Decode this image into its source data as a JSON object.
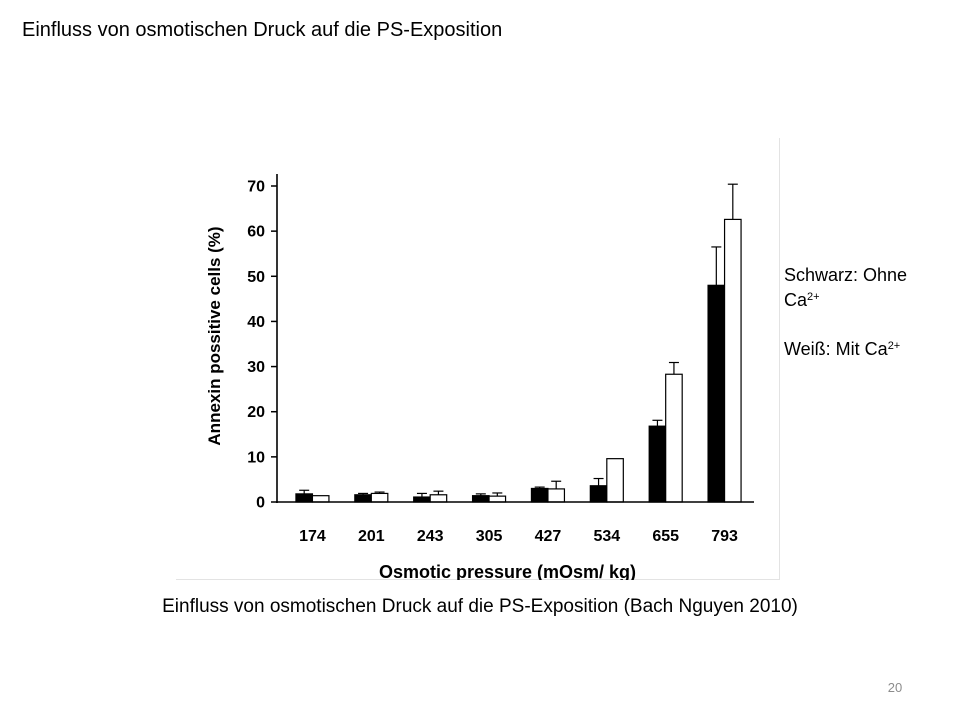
{
  "slide": {
    "title": "Einfluss von osmotischen Druck auf die PS-Exposition",
    "caption": "Einfluss von osmotischen Druck auf die PS-Exposition (Bach Nguyen 2010)",
    "page_number": "20"
  },
  "legend": {
    "black_label": "Schwarz: Ohne",
    "black_label_ca": "Ca",
    "white_label": "Weiß: Mit Ca",
    "charge": "2+"
  },
  "chart_data": {
    "type": "bar",
    "xlabel": "Osmotic pressure (mOsm/ kg)",
    "ylabel": "Annexin possitive cells (%)",
    "ylim": [
      0,
      70
    ],
    "yticks": [
      "0",
      "10",
      "20",
      "30",
      "40",
      "50",
      "60",
      "70"
    ],
    "categories": [
      "174",
      "201",
      "243",
      "305",
      "427",
      "534",
      "655",
      "793"
    ],
    "series": [
      {
        "fill": "#000000",
        "values": [
          1.8,
          1.6,
          1.1,
          1.4,
          3.0,
          3.6,
          16.8,
          48.0
        ],
        "errors": [
          0.8,
          0.3,
          0.8,
          0.4,
          0.3,
          1.6,
          1.3,
          8.5
        ]
      },
      {
        "fill": "#ffffff",
        "values": [
          1.4,
          1.9,
          1.6,
          1.3,
          2.9,
          9.6,
          28.3,
          62.6
        ],
        "errors": [
          0.0,
          0.3,
          0.8,
          0.7,
          1.7,
          0.0,
          2.6,
          7.8
        ]
      }
    ],
    "grid": false,
    "legend_position": "right of chart"
  }
}
